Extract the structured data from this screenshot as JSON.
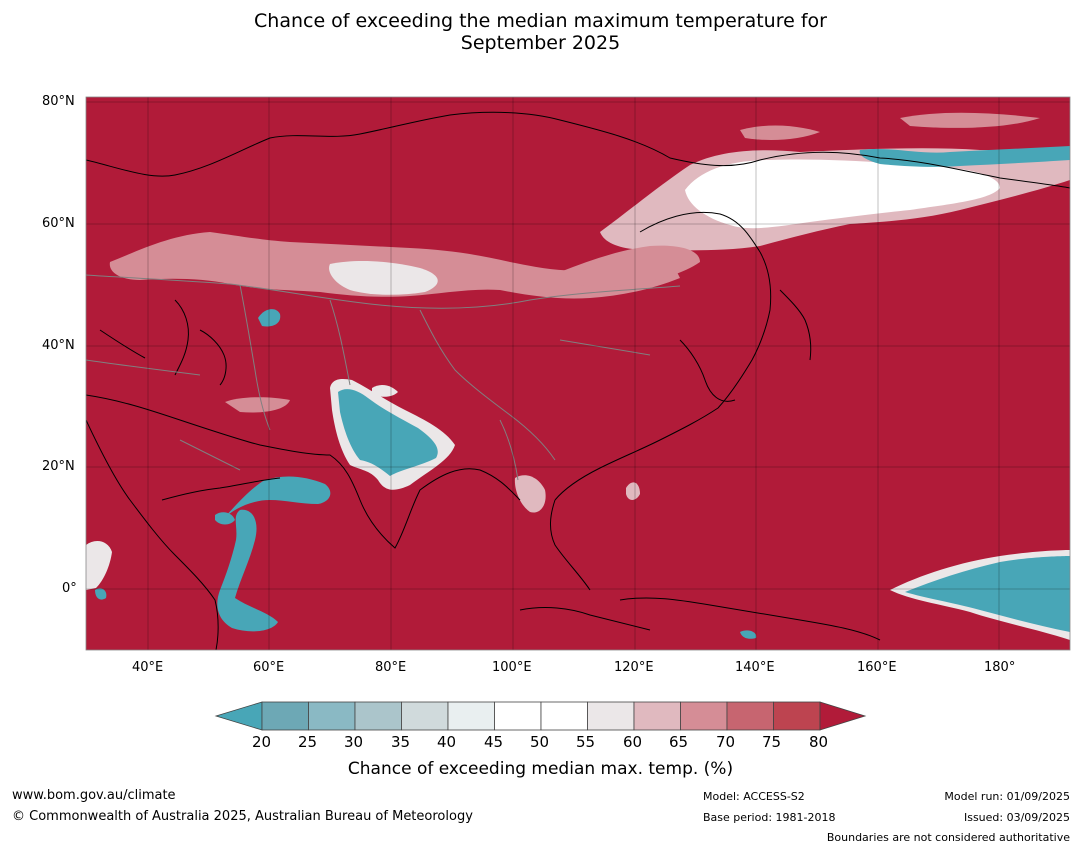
{
  "title_line1": "Chance of exceeding the median maximum temperature for",
  "title_line2": "September 2025",
  "map": {
    "lat_labels": [
      "80°N",
      "60°N",
      "40°N",
      "20°N",
      "0°"
    ],
    "lon_labels": [
      "40°E",
      "60°E",
      "80°E",
      "100°E",
      "120°E",
      "140°E",
      "160°E",
      "180°"
    ],
    "colors": {
      "high": "#b11b39",
      "low": "#48a6b7",
      "neutral": "#ffffff",
      "coast": "#000000",
      "border": "#808080"
    }
  },
  "colorbar": {
    "labels": [
      "20",
      "25",
      "30",
      "35",
      "40",
      "45",
      "50",
      "55",
      "60",
      "65",
      "70",
      "75",
      "80"
    ],
    "colors": [
      "#48a6b7",
      "#6da8b5",
      "#8ab9c4",
      "#abc5cb",
      "#d0dadc",
      "#e9eff0",
      "#ffffff",
      "#ffffff",
      "#ebe7e8",
      "#e0b9bf",
      "#d58d96",
      "#c76570",
      "#bd4450",
      "#b11b39"
    ],
    "title": "Chance of exceeding median max. temp. (%)"
  },
  "footer": {
    "website": "www.bom.gov.au/climate",
    "copyright": "© Commonwealth of Australia 2025, Australian Bureau of Meteorology",
    "model": "Model: ACCESS-S2",
    "base_period": "Base period: 1981-2018",
    "model_run": "Model run: 01/09/2025",
    "issued": "Issued: 03/09/2025",
    "disclaimer": "Boundaries are not considered authoritative"
  }
}
